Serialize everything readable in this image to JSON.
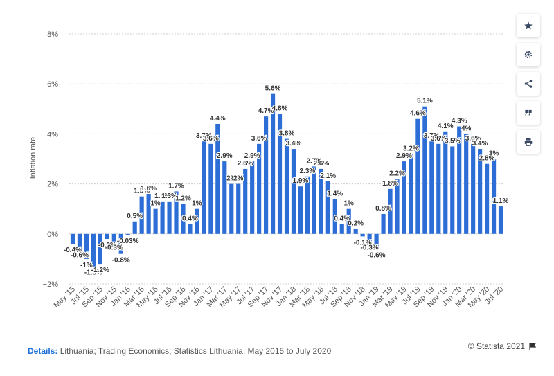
{
  "colors": {
    "bar": "#2d6ed6",
    "grid": "#cfcfcf",
    "text": "#333333"
  },
  "chart_data": {
    "type": "bar",
    "ylabel": "Inflation rate",
    "ylim": [
      -2,
      8
    ],
    "yticks": [
      -2,
      0,
      2,
      4,
      6,
      8
    ],
    "ytick_labels": [
      "−2%",
      "0%",
      "2%",
      "4%",
      "6%",
      "8%"
    ],
    "categories": [
      "May '15",
      "Jun '15",
      "Jul '15",
      "Aug '15",
      "Sep '15",
      "Oct '15",
      "Nov '15",
      "Dec '15",
      "Jan '16",
      "Feb '16",
      "Mar '16",
      "Apr '16",
      "May '16",
      "Jun '16",
      "Jul '16",
      "Aug '16",
      "Sep '16",
      "Oct '16",
      "Nov '16",
      "Dec '16",
      "Jan '17",
      "Feb '17",
      "Mar '17",
      "Apr '17",
      "May '17",
      "Jun '17",
      "Jul '17",
      "Aug '17",
      "Sep '17",
      "Oct '17",
      "Nov '17",
      "Dec '17",
      "Jan '18",
      "Feb '18",
      "Mar '18",
      "Apr '18",
      "May '18",
      "Jun '18",
      "Jul '18",
      "Aug '18",
      "Sep '18",
      "Oct '18",
      "Nov '18",
      "Dec '18",
      "Jan '19",
      "Feb '19",
      "Mar '19",
      "Apr '19",
      "May '19",
      "Jun '19",
      "Jul '19",
      "Aug '19",
      "Sep '19",
      "Oct '19",
      "Nov '19",
      "Dec '19",
      "Jan '20",
      "Feb '20",
      "Mar '20",
      "Apr '20",
      "May '20",
      "Jun '20",
      "Jul '20"
    ],
    "x_tick_labels": [
      "May '15",
      "Jul '15",
      "Sep '15",
      "Nov '15",
      "Jan '16",
      "Mar '16",
      "May '16",
      "Jul '16",
      "Sep '16",
      "Nov '16",
      "Jan '17",
      "Mar '17",
      "May '17",
      "Jul '17",
      "Sep '17",
      "Nov '17",
      "Jan '18",
      "Mar '18",
      "May '18",
      "Jul '18",
      "Sep '18",
      "Nov '18",
      "Jan '19",
      "Mar '19",
      "May '19",
      "Jul '19",
      "Sep '19",
      "Nov '19",
      "Jan '20",
      "Mar '20",
      "May '20",
      "Jul '20"
    ],
    "values": [
      -0.4,
      -0.6,
      -1,
      -1.3,
      -1.2,
      -0.2,
      -0.3,
      -0.8,
      -0.03,
      0.5,
      1.5,
      1.6,
      1,
      1.3,
      1.3,
      1.7,
      1.2,
      0.4,
      1,
      3.7,
      3.6,
      4.4,
      2.9,
      2,
      2,
      2.6,
      2.9,
      3.6,
      4.7,
      5.6,
      4.8,
      3.8,
      3.4,
      1.9,
      2.3,
      2.7,
      2.6,
      2.1,
      1.4,
      0.4,
      1,
      0.2,
      -0.1,
      -0.3,
      -0.6,
      0.8,
      1.8,
      2.2,
      2.9,
      3.2,
      4.6,
      5.1,
      3.7,
      3.6,
      4.1,
      3.5,
      4.3,
      4,
      3.6,
      3.4,
      2.8,
      3,
      1.1
    ],
    "data_labels": [
      "-0.4%",
      "-0.6%",
      "-1%",
      "-1.3%",
      "-1.2%",
      "-0.2%",
      "-0.3%",
      "-0.8%",
      "-0.03%",
      "0.5%",
      "1.5%",
      "1.6%",
      "1%",
      "1.3%",
      "1.3%",
      "1.7%",
      "1.2%",
      "0.4%",
      "1%",
      "3.7%",
      "3.6%",
      "4.4%",
      "2.9%",
      "2%",
      "2%",
      "2.6%",
      "2.9%",
      "3.6%",
      "4.7%",
      "5.6%",
      "4.8%",
      "3.8%",
      "3.4%",
      "1.9%",
      "2.3%",
      "2.7%",
      "2.6%",
      "2.1%",
      "1.4%",
      "0.4%",
      "1%",
      "0.2%",
      "-0.1%",
      "-0.3%",
      "-0.6%",
      "0.8%",
      "1.8%",
      "2.2%",
      "2.9%",
      "3.2%",
      "4.6%",
      "5.1%",
      "3.7%",
      "3.6%",
      "4.1%",
      "3.5%",
      "4.3%",
      "4%",
      "3.6%",
      "3.4%",
      "2.8%",
      "3%",
      "1.1%"
    ],
    "grid": true,
    "legend": "none"
  },
  "toolbar": {
    "star_icon": "star-icon",
    "settings_icon": "gear-icon",
    "share_icon": "share-icon",
    "cite_icon": "quote-icon",
    "print_icon": "print-icon"
  },
  "footer": {
    "details_label": "Details:",
    "details_text": " Lithuania; Trading Economics; Statistics Lithuania; May 2015 to July 2020",
    "credit": "© Statista 2021"
  }
}
